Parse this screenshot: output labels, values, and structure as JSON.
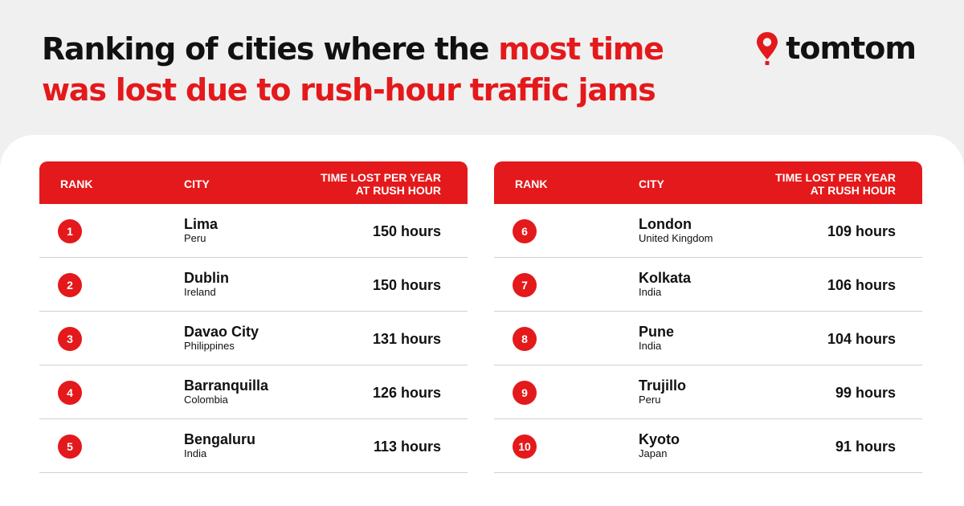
{
  "title": {
    "part1": "Ranking of cities where the ",
    "highlight1": "most time",
    "highlight2": "was lost due to rush-hour traffic jams"
  },
  "logo": {
    "text": "tomtom",
    "icon": "location-pin-icon"
  },
  "headers": {
    "rank": "RANK",
    "city": "CITY",
    "time_line1": "TIME LOST PER YEAR",
    "time_line2": "AT RUSH HOUR"
  },
  "colors": {
    "accent": "#e4191b",
    "background": "#f0f0f0",
    "text": "#111111"
  },
  "tables": [
    {
      "rows": [
        {
          "rank": "1",
          "city": "Lima",
          "country": "Peru",
          "time": "150 hours"
        },
        {
          "rank": "2",
          "city": "Dublin",
          "country": "Ireland",
          "time": "150 hours"
        },
        {
          "rank": "3",
          "city": "Davao City",
          "country": "Philippines",
          "time": "131 hours"
        },
        {
          "rank": "4",
          "city": "Barranquilla",
          "country": "Colombia",
          "time": "126 hours"
        },
        {
          "rank": "5",
          "city": "Bengaluru",
          "country": "India",
          "time": "113 hours"
        }
      ]
    },
    {
      "rows": [
        {
          "rank": "6",
          "city": "London",
          "country": "United Kingdom",
          "time": "109 hours"
        },
        {
          "rank": "7",
          "city": "Kolkata",
          "country": "India",
          "time": "106 hours"
        },
        {
          "rank": "8",
          "city": "Pune",
          "country": "India",
          "time": "104 hours"
        },
        {
          "rank": "9",
          "city": "Trujillo",
          "country": "Peru",
          "time": "99 hours"
        },
        {
          "rank": "10",
          "city": "Kyoto",
          "country": "Japan",
          "time": "91 hours"
        }
      ]
    }
  ]
}
